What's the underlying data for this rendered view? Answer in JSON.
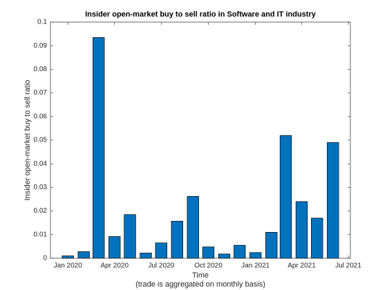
{
  "chart_data": {
    "type": "bar",
    "title": "Insider open-market buy to sell ratio in Software and IT industry",
    "ylabel": "Insider open-market buy to sell ratio",
    "xlabel": [
      "Time",
      "(trade is aggregated on monthly basis)"
    ],
    "x": [
      "2020-01-01",
      "2020-02-01",
      "2020-03-01",
      "2020-04-01",
      "2020-05-01",
      "2020-06-01",
      "2020-07-01",
      "2020-08-01",
      "2020-09-01",
      "2020-10-01",
      "2020-11-01",
      "2020-12-01",
      "2021-01-01",
      "2021-02-01",
      "2021-03-01",
      "2021-04-01",
      "2021-05-01",
      "2021-06-01"
    ],
    "values": [
      0.001,
      0.0028,
      0.0935,
      0.0092,
      0.0185,
      0.0022,
      0.0065,
      0.0157,
      0.0262,
      0.0048,
      0.0018,
      0.0055,
      0.0024,
      0.011,
      0.052,
      0.024,
      0.017,
      0.049
    ],
    "color": "#0072bd",
    "xlim": [
      "2019-11-28",
      "2021-07-05"
    ],
    "xticks": [
      {
        "value": "2020-01-01",
        "label": "Jan 2020"
      },
      {
        "value": "2020-04-01",
        "label": "Apr 2020"
      },
      {
        "value": "2020-07-01",
        "label": "Jul 2020"
      },
      {
        "value": "2020-10-01",
        "label": "Oct 2020"
      },
      {
        "value": "2021-01-01",
        "label": "Jan 2021"
      },
      {
        "value": "2021-04-01",
        "label": "Apr 2021"
      },
      {
        "value": "2021-07-01",
        "label": "Jul 2021"
      }
    ],
    "ylim": [
      0,
      0.1
    ],
    "yticks": [
      0,
      0.01,
      0.02,
      0.03,
      0.04,
      0.05,
      0.06,
      0.07,
      0.08,
      0.09,
      0.1
    ],
    "grid": false
  }
}
